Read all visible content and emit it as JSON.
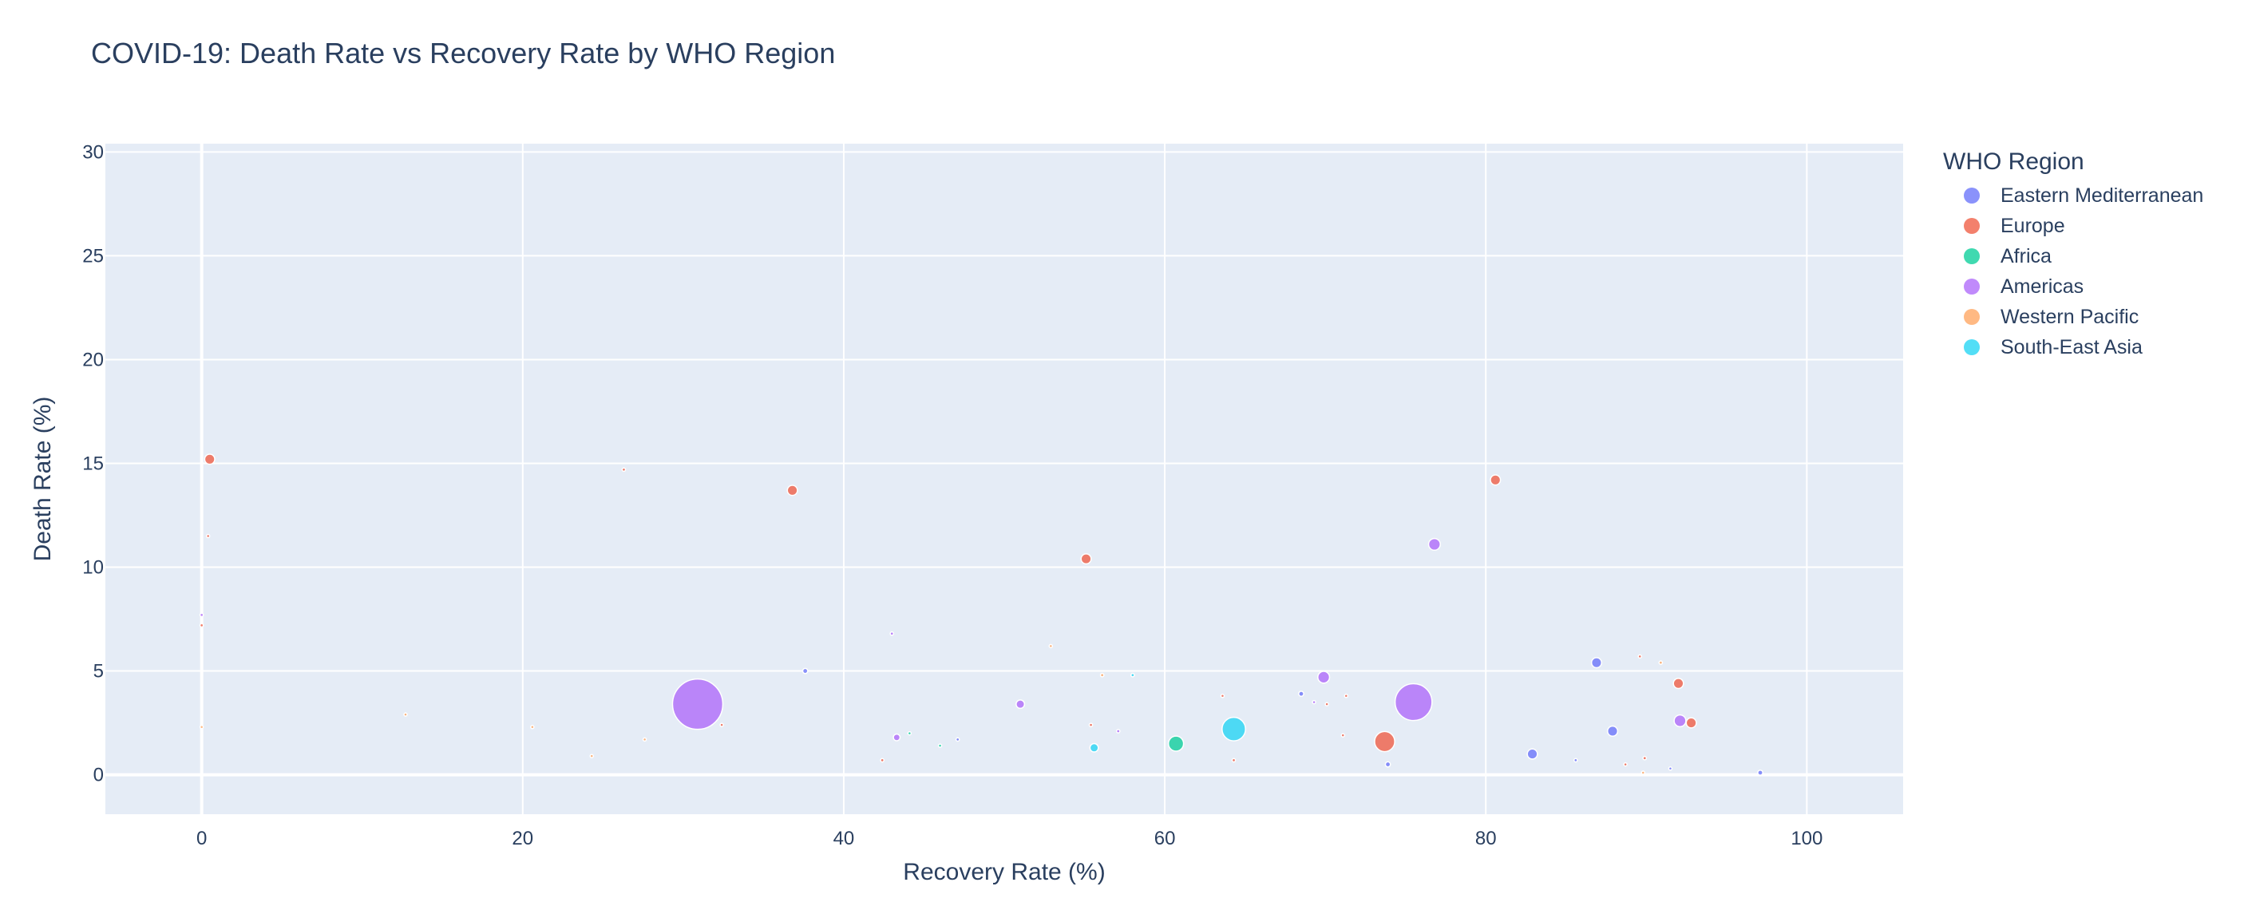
{
  "chart_data": {
    "type": "scatter",
    "title": "COVID-19: Death Rate vs Recovery Rate by WHO Region",
    "xlabel": "Recovery Rate (%)",
    "ylabel": "Death Rate (%)",
    "xlim": [
      -6,
      106
    ],
    "ylim": [
      -1.9,
      30.4
    ],
    "xticks": [
      0,
      20,
      40,
      60,
      80,
      100
    ],
    "yticks": [
      0,
      5,
      10,
      15,
      20,
      25,
      30
    ],
    "grid": true,
    "legend_title": "WHO Region",
    "legend_position": "right",
    "series": [
      {
        "name": "Eastern Mediterranean",
        "color": "#636efa",
        "points": [
          {
            "x": 37.6,
            "y": 5.0,
            "size": 3
          },
          {
            "x": 68.5,
            "y": 3.9,
            "size": 3
          },
          {
            "x": 73.9,
            "y": 0.5,
            "size": 3
          },
          {
            "x": 82.9,
            "y": 1.0,
            "size": 6
          },
          {
            "x": 85.6,
            "y": 0.7,
            "size": 2
          },
          {
            "x": 86.9,
            "y": 5.4,
            "size": 6
          },
          {
            "x": 87.9,
            "y": 2.1,
            "size": 6
          },
          {
            "x": 97.1,
            "y": 0.1,
            "size": 3
          },
          {
            "x": 91.5,
            "y": 0.3,
            "size": 1
          },
          {
            "x": 47.1,
            "y": 1.7,
            "size": 2
          }
        ]
      },
      {
        "name": "Europe",
        "color": "#ef553b",
        "points": [
          {
            "x": 0.5,
            "y": 15.2,
            "size": 6
          },
          {
            "x": 0.4,
            "y": 11.5,
            "size": 1
          },
          {
            "x": 0.0,
            "y": 7.2,
            "size": 2
          },
          {
            "x": 26.3,
            "y": 14.7,
            "size": 2
          },
          {
            "x": 36.8,
            "y": 13.7,
            "size": 6
          },
          {
            "x": 55.1,
            "y": 10.4,
            "size": 6
          },
          {
            "x": 80.6,
            "y": 14.2,
            "size": 6
          },
          {
            "x": 73.7,
            "y": 1.6,
            "size": 12
          },
          {
            "x": 92.0,
            "y": 4.4,
            "size": 6
          },
          {
            "x": 92.8,
            "y": 2.5,
            "size": 6
          },
          {
            "x": 55.4,
            "y": 2.4,
            "size": 2
          },
          {
            "x": 64.3,
            "y": 0.7,
            "size": 2
          },
          {
            "x": 42.4,
            "y": 0.7,
            "size": 2
          },
          {
            "x": 70.1,
            "y": 3.4,
            "size": 1
          },
          {
            "x": 71.3,
            "y": 3.8,
            "size": 1
          },
          {
            "x": 71.1,
            "y": 1.9,
            "size": 1
          },
          {
            "x": 89.9,
            "y": 0.8,
            "size": 2
          },
          {
            "x": 32.4,
            "y": 2.4,
            "size": 1
          },
          {
            "x": 89.6,
            "y": 5.7,
            "size": 1
          },
          {
            "x": 88.7,
            "y": 0.5,
            "size": 1
          },
          {
            "x": 63.6,
            "y": 3.8,
            "size": 1
          }
        ]
      },
      {
        "name": "Africa",
        "color": "#00cc96",
        "points": [
          {
            "x": 60.7,
            "y": 1.5,
            "size": 9
          },
          {
            "x": 44.1,
            "y": 2.0,
            "size": 1
          },
          {
            "x": 46.0,
            "y": 1.4,
            "size": 1
          }
        ]
      },
      {
        "name": "Americas",
        "color": "#ab63fa",
        "points": [
          {
            "x": 30.9,
            "y": 3.4,
            "size": 30
          },
          {
            "x": 75.5,
            "y": 3.5,
            "size": 22
          },
          {
            "x": 76.8,
            "y": 11.1,
            "size": 7
          },
          {
            "x": 69.9,
            "y": 4.7,
            "size": 7
          },
          {
            "x": 51.0,
            "y": 3.4,
            "size": 5
          },
          {
            "x": 43.3,
            "y": 1.8,
            "size": 4
          },
          {
            "x": 92.1,
            "y": 2.6,
            "size": 7
          },
          {
            "x": 0.0,
            "y": 7.7,
            "size": 2
          },
          {
            "x": 43.0,
            "y": 6.8,
            "size": 2
          },
          {
            "x": 57.1,
            "y": 2.1,
            "size": 2
          },
          {
            "x": 69.3,
            "y": 3.5,
            "size": 1
          }
        ]
      },
      {
        "name": "Western Pacific",
        "color": "#ffa15a",
        "points": [
          {
            "x": 56.1,
            "y": 4.8,
            "size": 2
          },
          {
            "x": 12.7,
            "y": 2.9,
            "size": 1
          },
          {
            "x": 90.9,
            "y": 5.4,
            "size": 2
          },
          {
            "x": 89.8,
            "y": 0.1,
            "size": 1
          },
          {
            "x": 0.0,
            "y": 2.3,
            "size": 1
          },
          {
            "x": 20.6,
            "y": 2.3,
            "size": 1
          },
          {
            "x": 24.3,
            "y": 0.9,
            "size": 1
          },
          {
            "x": 27.6,
            "y": 1.7,
            "size": 1
          },
          {
            "x": 52.9,
            "y": 6.2,
            "size": 1
          }
        ]
      },
      {
        "name": "South-East Asia",
        "color": "#19d3f3",
        "points": [
          {
            "x": 64.3,
            "y": 2.2,
            "size": 14
          },
          {
            "x": 55.6,
            "y": 1.3,
            "size": 5
          },
          {
            "x": 58.0,
            "y": 4.8,
            "size": 2
          }
        ]
      }
    ]
  }
}
